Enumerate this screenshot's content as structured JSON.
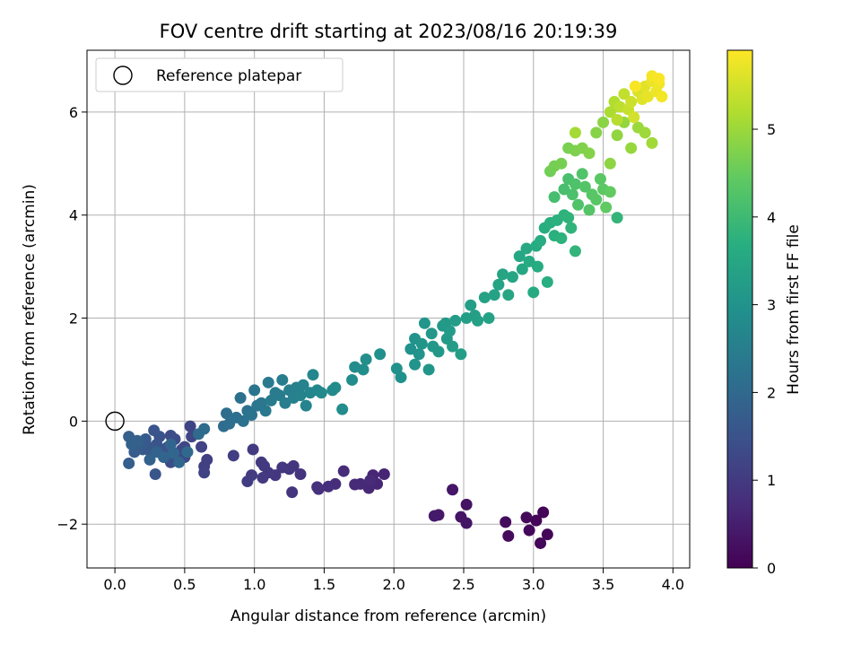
{
  "chart_data": {
    "type": "scatter",
    "title": "FOV centre drift starting at 2023/08/16 20:19:39",
    "xlabel": "Angular distance from reference (arcmin)",
    "ylabel": "Rotation from reference (arcmin)",
    "xlim": [
      -0.2,
      4.12
    ],
    "ylim": [
      -2.85,
      7.2
    ],
    "xticks": [
      0.0,
      0.5,
      1.0,
      1.5,
      2.0,
      2.5,
      3.0,
      3.5,
      4.0
    ],
    "xtick_labels": [
      "0.0",
      "0.5",
      "1.0",
      "1.5",
      "2.0",
      "2.5",
      "3.0",
      "3.5",
      "4.0"
    ],
    "yticks": [
      -2,
      0,
      2,
      4,
      6
    ],
    "ytick_labels": [
      "−2",
      "0",
      "2",
      "4",
      "6"
    ],
    "grid": true,
    "legend": {
      "position": "upper-left",
      "entries": [
        "Reference platepar"
      ]
    },
    "reference_point": {
      "x": 0.0,
      "y": 0.0
    },
    "colorbar": {
      "label": "Hours from first FF file",
      "range": [
        0,
        5.9
      ],
      "ticks": [
        0,
        1,
        2,
        3,
        4,
        5
      ],
      "tick_labels": [
        "0",
        "1",
        "2",
        "3",
        "4",
        "5"
      ],
      "colormap": "viridis"
    },
    "points": [
      [
        3.07,
        -1.77,
        0.05
      ],
      [
        3.02,
        -1.93,
        0.07
      ],
      [
        3.1,
        -2.2,
        0.08
      ],
      [
        3.05,
        -2.37,
        0.1
      ],
      [
        2.97,
        -2.12,
        0.12
      ],
      [
        2.95,
        -1.87,
        0.13
      ],
      [
        2.82,
        -2.23,
        0.17
      ],
      [
        2.8,
        -1.96,
        0.18
      ],
      [
        2.52,
        -1.62,
        0.3
      ],
      [
        2.48,
        -1.86,
        0.32
      ],
      [
        2.52,
        -1.98,
        0.33
      ],
      [
        2.42,
        -1.33,
        0.35
      ],
      [
        2.32,
        -1.82,
        0.4
      ],
      [
        2.29,
        -1.84,
        0.42
      ],
      [
        1.93,
        -1.03,
        0.6
      ],
      [
        1.85,
        -1.05,
        0.62
      ],
      [
        1.88,
        -1.22,
        0.63
      ],
      [
        1.82,
        -1.3,
        0.65
      ],
      [
        1.76,
        -1.22,
        0.67
      ],
      [
        1.83,
        -1.15,
        0.68
      ],
      [
        1.72,
        -1.23,
        0.7
      ],
      [
        1.64,
        -0.97,
        0.72
      ],
      [
        1.58,
        -1.22,
        0.75
      ],
      [
        1.53,
        -1.27,
        0.78
      ],
      [
        1.45,
        -1.28,
        0.8
      ],
      [
        1.46,
        -1.32,
        0.82
      ],
      [
        1.33,
        -1.03,
        0.85
      ],
      [
        1.28,
        -0.87,
        0.87
      ],
      [
        1.27,
        -1.38,
        0.88
      ],
      [
        1.25,
        -0.93,
        0.9
      ],
      [
        1.2,
        -0.9,
        0.92
      ],
      [
        1.15,
        -1.05,
        0.93
      ],
      [
        1.1,
        -1.0,
        0.95
      ],
      [
        1.07,
        -0.87,
        0.97
      ],
      [
        1.05,
        -0.8,
        0.98
      ],
      [
        1.06,
        -1.1,
        1.0
      ],
      [
        0.99,
        -0.55,
        1.02
      ],
      [
        0.98,
        -1.05,
        1.03
      ],
      [
        0.95,
        -1.17,
        1.05
      ],
      [
        0.85,
        -0.67,
        1.08
      ],
      [
        0.64,
        -0.88,
        1.1
      ],
      [
        0.66,
        -0.75,
        1.12
      ],
      [
        0.64,
        -1.0,
        1.15
      ],
      [
        0.62,
        -0.5,
        1.18
      ],
      [
        0.54,
        -0.1,
        1.2
      ],
      [
        0.55,
        -0.3,
        1.22
      ],
      [
        0.5,
        -0.5,
        1.25
      ],
      [
        0.5,
        -0.7,
        1.27
      ],
      [
        0.48,
        -0.55,
        1.3
      ],
      [
        0.45,
        -0.62,
        1.32
      ],
      [
        0.43,
        -0.35,
        1.35
      ],
      [
        0.4,
        -0.28,
        1.37
      ],
      [
        0.4,
        -0.8,
        1.4
      ],
      [
        0.38,
        -0.5,
        1.42
      ],
      [
        0.36,
        -0.7,
        1.45
      ],
      [
        0.34,
        -0.55,
        1.47
      ],
      [
        0.32,
        -0.3,
        1.5
      ],
      [
        0.3,
        -0.45,
        1.52
      ],
      [
        0.28,
        -0.18,
        1.55
      ],
      [
        0.29,
        -1.03,
        1.57
      ],
      [
        0.26,
        -0.62,
        1.6
      ],
      [
        0.24,
        -0.5,
        1.62
      ],
      [
        0.22,
        -0.35,
        1.65
      ],
      [
        0.2,
        -0.55,
        1.67
      ],
      [
        0.17,
        -0.45,
        1.7
      ],
      [
        0.14,
        -0.6,
        1.72
      ],
      [
        0.1,
        -0.82,
        1.75
      ],
      [
        0.1,
        -0.3,
        1.77
      ],
      [
        0.12,
        -0.45,
        1.8
      ],
      [
        0.16,
        -0.38,
        1.82
      ],
      [
        0.25,
        -0.75,
        1.85
      ],
      [
        0.3,
        -0.6,
        1.87
      ],
      [
        0.35,
        -0.7,
        1.9
      ],
      [
        0.4,
        -0.45,
        1.92
      ],
      [
        0.42,
        -0.62,
        1.95
      ],
      [
        0.46,
        -0.8,
        1.97
      ],
      [
        0.52,
        -0.6,
        2.0
      ],
      [
        0.6,
        -0.25,
        2.02
      ],
      [
        0.64,
        -0.15,
        2.05
      ],
      [
        0.78,
        -0.1,
        2.07
      ],
      [
        0.8,
        0.15,
        2.1
      ],
      [
        0.82,
        -0.05,
        2.12
      ],
      [
        0.87,
        0.07,
        2.15
      ],
      [
        0.9,
        0.45,
        2.17
      ],
      [
        0.92,
        0.0,
        2.2
      ],
      [
        0.95,
        0.2,
        2.22
      ],
      [
        0.98,
        0.12,
        2.25
      ],
      [
        1.0,
        0.6,
        2.27
      ],
      [
        1.02,
        0.3,
        2.3
      ],
      [
        1.05,
        0.35,
        2.32
      ],
      [
        1.08,
        0.2,
        2.35
      ],
      [
        1.1,
        0.75,
        2.37
      ],
      [
        1.12,
        0.4,
        2.4
      ],
      [
        1.15,
        0.55,
        2.42
      ],
      [
        1.18,
        0.5,
        2.45
      ],
      [
        1.2,
        0.8,
        2.47
      ],
      [
        1.22,
        0.35,
        2.5
      ],
      [
        1.25,
        0.6,
        2.52
      ],
      [
        1.28,
        0.45,
        2.55
      ],
      [
        1.3,
        0.65,
        2.57
      ],
      [
        1.33,
        0.5,
        2.6
      ],
      [
        1.35,
        0.7,
        2.62
      ],
      [
        1.37,
        0.3,
        2.65
      ],
      [
        1.4,
        0.55,
        2.67
      ],
      [
        1.42,
        0.9,
        2.7
      ],
      [
        1.45,
        0.6,
        2.72
      ],
      [
        1.48,
        0.55,
        2.75
      ],
      [
        1.56,
        0.6,
        2.77
      ],
      [
        1.58,
        0.65,
        2.8
      ],
      [
        1.63,
        0.23,
        2.82
      ],
      [
        1.7,
        0.8,
        2.84
      ],
      [
        1.72,
        1.05,
        2.86
      ],
      [
        1.78,
        1.0,
        2.88
      ],
      [
        1.8,
        1.2,
        2.9
      ],
      [
        1.9,
        1.3,
        2.92
      ],
      [
        2.02,
        1.02,
        2.94
      ],
      [
        2.05,
        0.85,
        2.96
      ],
      [
        2.12,
        1.4,
        2.98
      ],
      [
        2.15,
        1.6,
        3.0
      ],
      [
        2.15,
        1.1,
        3.02
      ],
      [
        2.18,
        1.3,
        3.03
      ],
      [
        2.2,
        1.5,
        3.05
      ],
      [
        2.22,
        1.9,
        3.07
      ],
      [
        2.25,
        1.0,
        3.08
      ],
      [
        2.27,
        1.7,
        3.1
      ],
      [
        2.28,
        1.45,
        3.12
      ],
      [
        2.32,
        1.35,
        3.13
      ],
      [
        2.35,
        1.85,
        3.15
      ],
      [
        2.37,
        1.9,
        3.17
      ],
      [
        2.38,
        1.6,
        3.18
      ],
      [
        2.4,
        1.75,
        3.2
      ],
      [
        2.42,
        1.45,
        3.22
      ],
      [
        2.44,
        1.95,
        3.23
      ],
      [
        2.48,
        1.3,
        3.25
      ],
      [
        2.52,
        2.0,
        3.27
      ],
      [
        2.55,
        2.25,
        3.29
      ],
      [
        2.58,
        2.05,
        3.31
      ],
      [
        2.6,
        1.95,
        3.33
      ],
      [
        2.65,
        2.4,
        3.35
      ],
      [
        2.68,
        2.0,
        3.37
      ],
      [
        2.72,
        2.45,
        3.39
      ],
      [
        2.75,
        2.65,
        3.41
      ],
      [
        2.78,
        2.85,
        3.43
      ],
      [
        2.82,
        2.45,
        3.45
      ],
      [
        2.85,
        2.8,
        3.47
      ],
      [
        2.9,
        3.2,
        3.5
      ],
      [
        2.92,
        2.95,
        3.52
      ],
      [
        2.95,
        3.35,
        3.54
      ],
      [
        2.97,
        3.1,
        3.56
      ],
      [
        3.0,
        2.5,
        3.58
      ],
      [
        3.02,
        3.4,
        3.6
      ],
      [
        3.03,
        3.0,
        3.62
      ],
      [
        3.05,
        3.5,
        3.64
      ],
      [
        3.08,
        3.75,
        3.66
      ],
      [
        3.1,
        2.7,
        3.68
      ],
      [
        3.12,
        3.85,
        3.7
      ],
      [
        3.15,
        3.6,
        3.72
      ],
      [
        3.17,
        3.9,
        3.74
      ],
      [
        3.2,
        3.55,
        3.76
      ],
      [
        3.22,
        4.0,
        3.78
      ],
      [
        3.25,
        3.95,
        3.8
      ],
      [
        3.27,
        3.75,
        3.82
      ],
      [
        3.3,
        3.3,
        3.84
      ],
      [
        3.6,
        3.95,
        3.86
      ],
      [
        3.15,
        4.35,
        4.1
      ],
      [
        3.22,
        4.5,
        4.12
      ],
      [
        3.25,
        4.7,
        4.15
      ],
      [
        3.28,
        4.4,
        4.18
      ],
      [
        3.3,
        4.6,
        4.2
      ],
      [
        3.32,
        4.2,
        4.23
      ],
      [
        3.35,
        4.8,
        4.25
      ],
      [
        3.37,
        4.55,
        4.28
      ],
      [
        3.4,
        4.1,
        4.3
      ],
      [
        3.42,
        4.4,
        4.33
      ],
      [
        3.45,
        4.3,
        4.35
      ],
      [
        3.48,
        4.7,
        4.38
      ],
      [
        3.5,
        4.5,
        4.4
      ],
      [
        3.52,
        4.15,
        4.43
      ],
      [
        3.55,
        4.45,
        4.45
      ],
      [
        3.12,
        4.85,
        4.6
      ],
      [
        3.15,
        4.95,
        4.63
      ],
      [
        3.2,
        5.0,
        4.66
      ],
      [
        3.25,
        5.3,
        4.69
      ],
      [
        3.3,
        5.25,
        4.72
      ],
      [
        3.35,
        5.3,
        4.75
      ],
      [
        3.4,
        5.2,
        4.78
      ],
      [
        3.45,
        5.6,
        4.81
      ],
      [
        3.5,
        5.8,
        4.84
      ],
      [
        3.55,
        5.0,
        4.87
      ],
      [
        3.6,
        5.55,
        4.9
      ],
      [
        3.65,
        5.8,
        4.93
      ],
      [
        3.7,
        5.3,
        4.96
      ],
      [
        3.75,
        5.7,
        4.99
      ],
      [
        3.8,
        5.6,
        5.02
      ],
      [
        3.85,
        5.4,
        5.05
      ],
      [
        3.3,
        5.6,
        5.08
      ],
      [
        3.55,
        6.0,
        5.15
      ],
      [
        3.58,
        6.2,
        5.2
      ],
      [
        3.6,
        5.85,
        5.25
      ],
      [
        3.62,
        6.1,
        5.3
      ],
      [
        3.65,
        6.35,
        5.35
      ],
      [
        3.68,
        6.05,
        5.4
      ],
      [
        3.7,
        6.2,
        5.45
      ],
      [
        3.72,
        5.9,
        5.5
      ],
      [
        3.75,
        6.4,
        5.55
      ],
      [
        3.78,
        6.25,
        5.6
      ],
      [
        3.8,
        6.5,
        5.65
      ],
      [
        3.82,
        6.3,
        5.7
      ],
      [
        3.85,
        6.6,
        5.72
      ],
      [
        3.88,
        6.4,
        5.75
      ],
      [
        3.9,
        6.55,
        5.78
      ],
      [
        3.92,
        6.3,
        5.8
      ],
      [
        3.85,
        6.7,
        5.82
      ],
      [
        3.9,
        6.65,
        5.85
      ],
      [
        3.73,
        6.5,
        5.85
      ]
    ]
  }
}
